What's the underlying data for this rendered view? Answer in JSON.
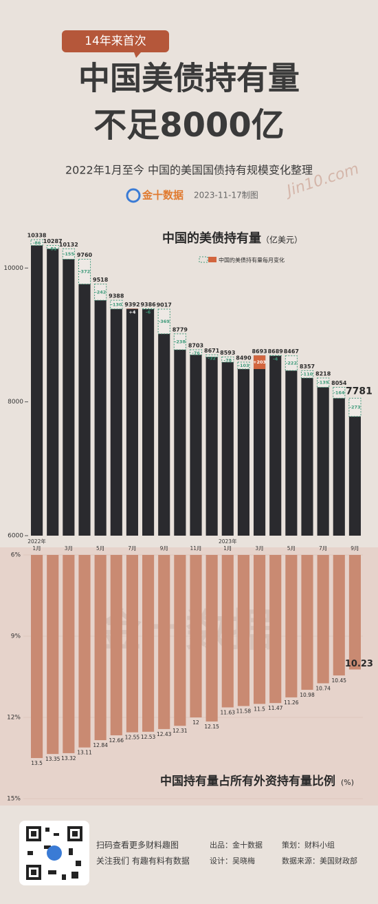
{
  "header": {
    "badge": "14年来首次",
    "title_line1": "中国美债持有量",
    "title_line2": "不足8000亿",
    "subtitle": "2022年1月至今 中国的美国国债持有规模变化整理",
    "brand": "金十数据",
    "date": "2023-11-17制图",
    "signature": "Jin10.com"
  },
  "chart_data": [
    {
      "type": "bar",
      "title": "中国的美债持有量",
      "unit": "（亿美元）",
      "categories": [
        "1月",
        null,
        "3月",
        null,
        "5月",
        null,
        "7月",
        null,
        "9月",
        null,
        "11月",
        null,
        "1月",
        null,
        "3月",
        null,
        "5月",
        null,
        "7月",
        null,
        "9月"
      ],
      "year_labels": [
        {
          "index": 0,
          "label": "2022年"
        },
        {
          "index": 12,
          "label": "2023年"
        }
      ],
      "values": [
        10338,
        10287,
        10132,
        9760,
        9518,
        9388,
        9392,
        9386,
        9017,
        8779,
        8703,
        8671,
        8593,
        8490,
        8693,
        8689,
        8467,
        8357,
        8218,
        8054,
        7781
      ],
      "color": "#2a2a2e",
      "changes": {
        "name": "中国的美债持有量每月变化",
        "values": [
          -86,
          -51,
          -155,
          -372,
          -242,
          -130,
          4,
          -6,
          -369,
          -238,
          -76,
          -32,
          -78,
          -103,
          203,
          -4,
          -222,
          -110,
          -139,
          -164,
          -273
        ],
        "value_labels": [
          "-86",
          "-51",
          "-155",
          "-372",
          "-242",
          "-130",
          "+4",
          "-6",
          "-369",
          "-238",
          "-76",
          "-32",
          "-78",
          "-103",
          "+203",
          "-4",
          "-222",
          "-110",
          "-139",
          "-164",
          "-273"
        ],
        "down_color": "#3f9a7a",
        "up_color": "#d2653e"
      },
      "ylim": [
        6000,
        10600
      ],
      "yticks": [
        6000,
        8000,
        10000
      ],
      "grid": false
    },
    {
      "type": "bar",
      "title": "中国持有量占所有外资持有量比例",
      "unit": "(%)",
      "inverted": true,
      "values": [
        13.5,
        13.35,
        13.32,
        13.11,
        12.84,
        12.66,
        12.55,
        12.53,
        12.43,
        12.31,
        12,
        12.15,
        11.63,
        11.58,
        11.5,
        11.47,
        11.26,
        10.98,
        10.74,
        10.45,
        10.23
      ],
      "color": "#c98a72",
      "ylim": [
        6,
        15
      ],
      "yticks": [
        {
          "value": 6,
          "label": "6%"
        },
        {
          "value": 9,
          "label": "9%"
        },
        {
          "value": 12,
          "label": "12%"
        },
        {
          "value": 15,
          "label": "15%"
        }
      ],
      "grid": true
    }
  ],
  "footer": {
    "scan": "扫码查看更多财料趣图",
    "follow": "关注我们 有趣有料有数据",
    "producer": "出品：金十数据",
    "designer": "设计：吴晓梅",
    "planner": "策划：财料小组",
    "source": "数据来源：美国财政部"
  }
}
